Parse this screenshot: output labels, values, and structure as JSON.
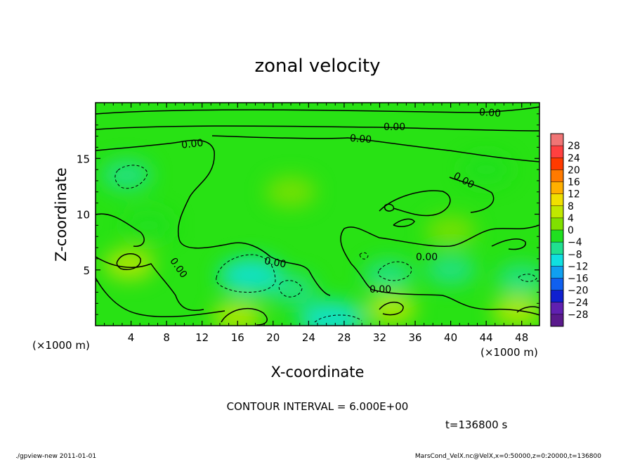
{
  "chart_data": {
    "type": "heatmap",
    "title": "zonal velocity",
    "xlabel": "X-coordinate",
    "ylabel": "Z-coordinate",
    "x_unit_left": "(×1000 m)",
    "x_unit_right": "(×1000 m)",
    "xlim": [
      0,
      50
    ],
    "ylim": [
      0,
      20
    ],
    "x_ticks": [
      4,
      8,
      12,
      16,
      20,
      24,
      28,
      32,
      36,
      40,
      44,
      48
    ],
    "x_tick_labels": [
      "4",
      "8",
      "12",
      "16",
      "20",
      "24",
      "28",
      "32",
      "36",
      "40",
      "44",
      "48"
    ],
    "y_ticks": [
      5,
      10,
      15
    ],
    "y_tick_labels": [
      "5",
      "10",
      "15"
    ],
    "contour_interval_text": "CONTOUR INTERVAL = 6.000E+00",
    "contour_labels": [
      "0.00",
      "0.00",
      "0.00",
      "0.00",
      "0.00",
      "0.00",
      "0.00",
      "0.00",
      "0.00"
    ],
    "time_text": "t=136800 s",
    "colorbar": {
      "levels": [
        28,
        24,
        20,
        16,
        12,
        8,
        4,
        0,
        -4,
        -8,
        -12,
        -16,
        -20,
        -24,
        -28
      ],
      "labels": [
        "28",
        "24",
        "20",
        "16",
        "12",
        "8",
        "4",
        "0",
        "−4",
        "−8",
        "−12",
        "−16",
        "−20",
        "−24",
        "−28"
      ],
      "colors": [
        "#f07575",
        "#ff4040",
        "#ff3a00",
        "#ff7a00",
        "#ffb000",
        "#f0e000",
        "#c0e800",
        "#80e000",
        "#20e020",
        "#20e090",
        "#10e0e0",
        "#10a0f0",
        "#1060f0",
        "#1020d0",
        "#6020b0",
        "#5a1a8c"
      ]
    },
    "regions": [
      {
        "x": 17.5,
        "z": 4.5,
        "v": -10
      },
      {
        "x": 22.0,
        "z": 3.3,
        "v": -7
      },
      {
        "x": 26.5,
        "z": 0.6,
        "v": -9
      },
      {
        "x": 3.5,
        "z": 13.5,
        "v": -6
      },
      {
        "x": 33.0,
        "z": 4.5,
        "v": -7
      },
      {
        "x": 48.0,
        "z": 4.2,
        "v": -5
      },
      {
        "x": 40.0,
        "z": 5.0,
        "v": -5
      },
      {
        "x": 16.0,
        "z": 0.8,
        "v": 7
      },
      {
        "x": 3.8,
        "z": 5.5,
        "v": 6
      },
      {
        "x": 33.3,
        "z": 1.5,
        "v": 4
      },
      {
        "x": 47.5,
        "z": 1.3,
        "v": 4
      },
      {
        "x": 22.0,
        "z": 12.0,
        "v": 2
      },
      {
        "x": 40.0,
        "z": 8.5,
        "v": 1
      },
      {
        "x": 6.0,
        "z": 9.0,
        "v": -4
      },
      {
        "x": 44.0,
        "z": 14.0,
        "v": -4
      }
    ]
  },
  "footer": {
    "left": "./gpview-new   2011-01-01",
    "right": "MarsCond_VelX.nc@VelX,x=0:50000,z=0:20000,t=136800"
  }
}
